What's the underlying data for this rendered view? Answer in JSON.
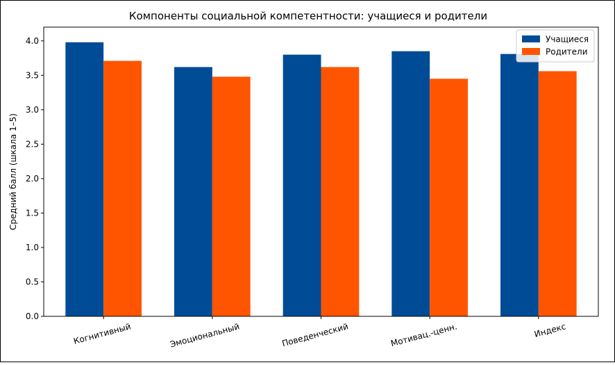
{
  "chart_data": {
    "type": "bar",
    "title": "Компоненты социальной компетентности: учащиеся и родители",
    "xlabel": "",
    "ylabel": "Средний балл (шкала 1–5)",
    "ylim": [
      0,
      4.2
    ],
    "yticks": [
      "0.0",
      "0.5",
      "1.0",
      "1.5",
      "2.0",
      "2.5",
      "3.0",
      "3.5",
      "4.0"
    ],
    "categories": [
      "Когнитивный",
      "Эмоциональный",
      "Поведенческий",
      "Мотивац.-ценн.",
      "Индекс"
    ],
    "series": [
      {
        "name": "Учащиеся",
        "color": "#004b96",
        "values": [
          3.98,
          3.62,
          3.8,
          3.85,
          3.81
        ]
      },
      {
        "name": "Родители",
        "color": "#ff5500",
        "values": [
          3.71,
          3.48,
          3.62,
          3.45,
          3.56
        ]
      }
    ],
    "legend_position": "top-right",
    "grid": false
  }
}
